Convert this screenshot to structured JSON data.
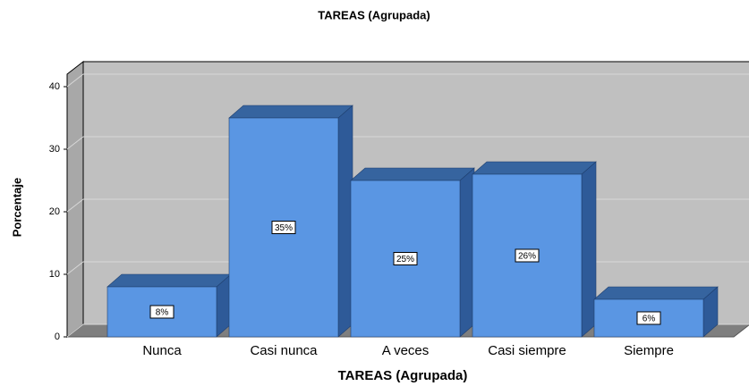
{
  "chart_data": {
    "type": "bar",
    "title": "TAREAS (Agrupada)",
    "x_label": "TAREAS (Agrupada)",
    "y_label": "Porcentaje",
    "categories": [
      "Nunca",
      "Casi nunca",
      "A veces",
      "Casi siempre",
      "Siempre"
    ],
    "values": [
      8,
      35,
      25,
      26,
      6
    ],
    "value_labels": [
      "8%",
      "35%",
      "25%",
      "26%",
      "6%"
    ],
    "color": "#5a96e3",
    "ylim": [
      0,
      40
    ],
    "yticks": [
      0,
      10,
      20,
      30,
      40
    ],
    "grid": true
  }
}
